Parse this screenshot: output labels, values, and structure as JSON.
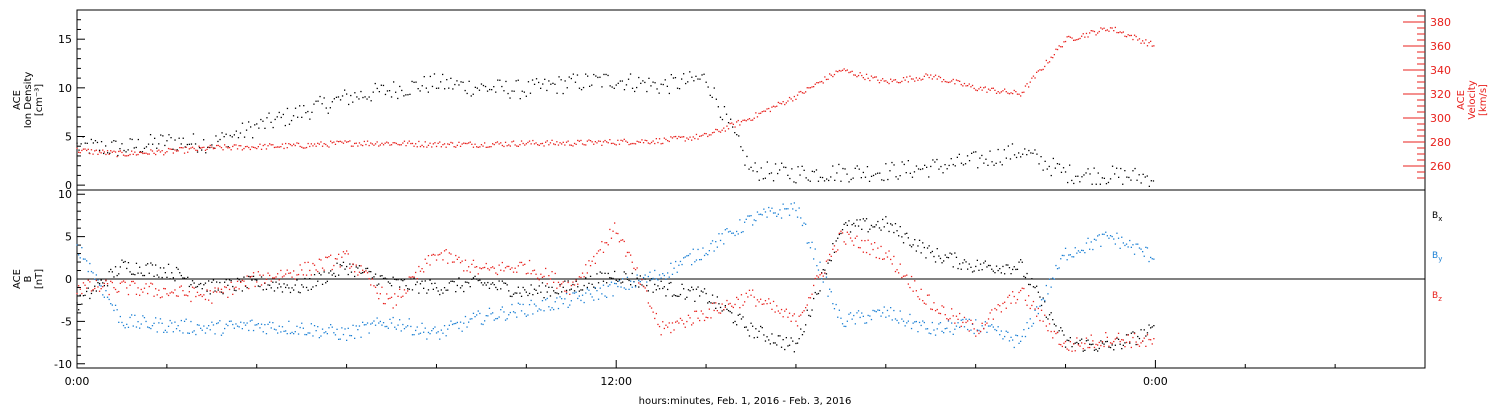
{
  "chart_data": [
    {
      "type": "scatter",
      "panel": "top",
      "ylabel_lines": [
        "ACE",
        "Ion Density",
        "[cm⁻³]"
      ],
      "ylim": [
        -0.5,
        18
      ],
      "yticks": [
        0,
        5,
        10,
        15
      ],
      "ylabel_right_lines": [
        "ACE",
        "Velocity",
        "[km/s]"
      ],
      "ylim_right": [
        240,
        390
      ],
      "yticks_right": [
        260,
        280,
        300,
        320,
        340,
        360,
        380
      ],
      "colors": {
        "density": "#000000",
        "velocity": "#e8201c"
      },
      "series": [
        {
          "name": "",
          "axis": "left",
          "color": "#000000",
          "x": [
            0,
            1,
            2,
            3,
            4,
            5,
            6,
            7,
            8,
            9,
            10,
            11,
            12,
            13,
            14,
            15,
            16,
            17,
            18,
            19,
            20,
            21,
            22,
            23,
            24
          ],
          "y": [
            4.0,
            3.8,
            4.5,
            4.3,
            6.0,
            7.5,
            9.0,
            9.8,
            10.5,
            10.0,
            9.8,
            10.5,
            10.8,
            10.2,
            11.0,
            1.5,
            1.2,
            1.3,
            1.4,
            1.8,
            2.5,
            3.5,
            1.2,
            1.0,
            0.8
          ]
        },
        {
          "name": "",
          "axis": "right",
          "color": "#e8201c",
          "x": [
            0,
            1,
            2,
            3,
            4,
            5,
            6,
            7,
            8,
            9,
            10,
            11,
            12,
            13,
            14,
            15,
            16,
            17,
            18,
            19,
            20,
            21,
            22,
            23,
            24
          ],
          "y": [
            273,
            270,
            272,
            275,
            276,
            277,
            279,
            279,
            278,
            278,
            279,
            279,
            280,
            281,
            285,
            300,
            318,
            340,
            330,
            335,
            325,
            320,
            365,
            375,
            360
          ]
        }
      ]
    },
    {
      "type": "scatter",
      "panel": "bottom",
      "ylabel_lines": [
        "ACE",
        "B",
        "[nT]"
      ],
      "ylim": [
        -10.5,
        10.5
      ],
      "yticks": [
        -10,
        -5,
        0,
        5,
        10
      ],
      "xlabel": "hours:minutes, Feb.  1, 2016 - Feb.  3, 2016",
      "xlim": [
        0,
        30
      ],
      "xticks": [
        0,
        12,
        24
      ],
      "xtick_labels": [
        "0:00",
        "12:00",
        "0:00"
      ],
      "series": [
        {
          "name": "B",
          "subscript": "x",
          "color": "#000000",
          "x": [
            0,
            1,
            2,
            3,
            4,
            5,
            6,
            7,
            8,
            9,
            10,
            11,
            12,
            13,
            14,
            15,
            16,
            17,
            18,
            19,
            20,
            21,
            22,
            23,
            24
          ],
          "y": [
            -3.0,
            1.5,
            1.0,
            -1.0,
            -0.5,
            -1.0,
            1.5,
            -0.5,
            -1.0,
            -0.5,
            -1.5,
            -1.0,
            0.5,
            -1.0,
            -2.0,
            -6.0,
            -8.0,
            6.0,
            6.5,
            3.0,
            1.5,
            1.5,
            -7.5,
            -8.0,
            -6.0
          ]
        },
        {
          "name": "B",
          "subscript": "y",
          "color": "#1a7fd4",
          "x": [
            0,
            1,
            2,
            3,
            4,
            5,
            6,
            7,
            8,
            9,
            10,
            11,
            12,
            13,
            14,
            15,
            16,
            17,
            18,
            19,
            20,
            21,
            22,
            23,
            24
          ],
          "y": [
            4.0,
            -5.0,
            -5.5,
            -5.8,
            -5.5,
            -5.8,
            -6.5,
            -5.0,
            -6.5,
            -4.5,
            -3.5,
            -2.5,
            -1.0,
            0.5,
            3.5,
            7.0,
            8.5,
            -5.0,
            -4.0,
            -6.0,
            -5.5,
            -7.5,
            3.0,
            5.0,
            2.5
          ]
        },
        {
          "name": "B",
          "subscript": "z",
          "color": "#e8201c",
          "x": [
            0,
            1,
            2,
            3,
            4,
            5,
            6,
            7,
            8,
            9,
            10,
            11,
            12,
            13,
            14,
            15,
            16,
            17,
            18,
            19,
            20,
            21,
            22,
            23,
            24
          ],
          "y": [
            -1.0,
            -1.0,
            -1.5,
            -2.0,
            0.0,
            1.0,
            2.5,
            -3.0,
            3.0,
            1.0,
            1.5,
            -1.0,
            6.0,
            -6.0,
            -4.0,
            -2.0,
            -5.0,
            5.0,
            3.0,
            -3.0,
            -6.0,
            -1.5,
            -8.0,
            -7.0,
            -7.5
          ]
        }
      ]
    }
  ]
}
